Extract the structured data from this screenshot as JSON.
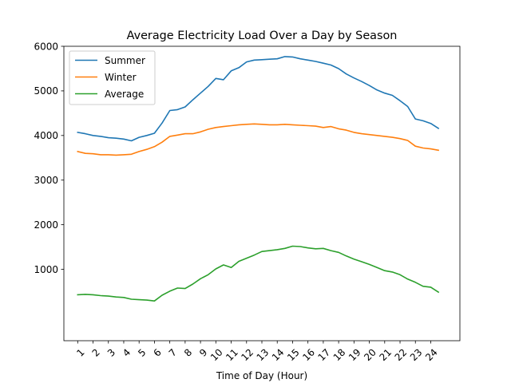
{
  "chart_data": {
    "type": "line",
    "title": "Average Electricity Load Over a Day by Season",
    "xlabel": "Time of Day (Hour)",
    "ylabel": "",
    "legend_position": "top-left",
    "grid": false,
    "xlim": [
      0.1,
      25.9
    ],
    "ylim": [
      -600,
      6000
    ],
    "yticks": [
      1000,
      2000,
      3000,
      4000,
      5000,
      6000
    ],
    "xticks": [
      1,
      2,
      3,
      4,
      5,
      6,
      7,
      8,
      9,
      10,
      11,
      12,
      13,
      14,
      15,
      16,
      17,
      18,
      19,
      20,
      21,
      22,
      23,
      24
    ],
    "x": [
      1,
      1.5,
      2,
      2.5,
      3,
      3.5,
      4,
      4.5,
      5,
      5.5,
      6,
      6.5,
      7,
      7.5,
      8,
      8.5,
      9,
      9.5,
      10,
      10.5,
      11,
      11.5,
      12,
      12.5,
      13,
      13.5,
      14,
      14.5,
      15,
      15.5,
      16,
      16.5,
      17,
      17.5,
      18,
      18.5,
      19,
      19.5,
      20,
      20.5,
      21,
      21.5,
      22,
      22.5,
      23,
      23.5,
      24,
      24.5
    ],
    "series": [
      {
        "name": "Summer",
        "color": "#1f77b4",
        "values": [
          4070,
          4040,
          4000,
          3980,
          3950,
          3940,
          3920,
          3880,
          3960,
          4000,
          4050,
          4280,
          4560,
          4580,
          4640,
          4800,
          4950,
          5100,
          5280,
          5250,
          5450,
          5520,
          5650,
          5690,
          5700,
          5710,
          5720,
          5770,
          5760,
          5720,
          5690,
          5660,
          5620,
          5580,
          5500,
          5380,
          5290,
          5210,
          5120,
          5020,
          4950,
          4900,
          4780,
          4650,
          4370,
          4330,
          4270,
          4160
        ]
      },
      {
        "name": "Winter",
        "color": "#ff7f0e",
        "values": [
          3640,
          3600,
          3590,
          3570,
          3570,
          3560,
          3570,
          3580,
          3640,
          3690,
          3750,
          3850,
          3980,
          4010,
          4040,
          4040,
          4080,
          4140,
          4180,
          4200,
          4220,
          4240,
          4250,
          4260,
          4250,
          4240,
          4240,
          4250,
          4240,
          4230,
          4220,
          4210,
          4180,
          4200,
          4150,
          4120,
          4070,
          4040,
          4020,
          4000,
          3980,
          3960,
          3930,
          3890,
          3760,
          3720,
          3700,
          3670
        ]
      },
      {
        "name": "Average",
        "color": "#2ca02c",
        "values": [
          430,
          440,
          430,
          410,
          400,
          380,
          370,
          330,
          320,
          310,
          290,
          420,
          510,
          580,
          570,
          670,
          790,
          880,
          1010,
          1100,
          1040,
          1180,
          1250,
          1320,
          1400,
          1420,
          1440,
          1470,
          1520,
          1510,
          1480,
          1460,
          1470,
          1420,
          1380,
          1300,
          1230,
          1170,
          1110,
          1040,
          970,
          940,
          880,
          780,
          710,
          620,
          600,
          490
        ]
      }
    ]
  }
}
